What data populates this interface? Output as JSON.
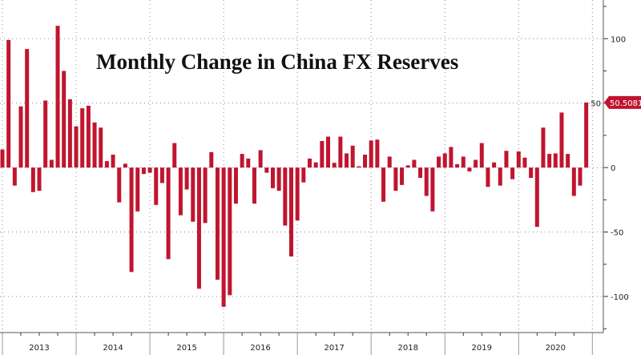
{
  "chart_data": {
    "type": "bar",
    "title": "Monthly Change in China FX Reserves",
    "xlabel": "",
    "ylabel": "",
    "x_start": "2013-01",
    "x_end": "2020-12",
    "frequency": "monthly",
    "year_labels": [
      "2013",
      "2014",
      "2015",
      "2016",
      "2017",
      "2018",
      "2019",
      "2020"
    ],
    "y_ticks": [
      100,
      50,
      0,
      -50,
      -100
    ],
    "ylim": [
      -128,
      130
    ],
    "grid": true,
    "axis_side": "right",
    "last_value_label": "50.5081",
    "bar_color": "#c0152f",
    "values": [
      14,
      99,
      -14,
      47.5,
      92,
      -19,
      -18,
      52,
      6,
      110,
      75,
      53,
      32,
      46,
      48,
      35,
      31,
      5,
      10,
      -27,
      3,
      -81,
      -34,
      -5,
      -4,
      -29,
      -12,
      -71,
      19,
      -37,
      -17,
      -42,
      -94,
      -43,
      12,
      -87,
      -108,
      -99,
      -28,
      10.6,
      7,
      -28,
      13.5,
      -4,
      -16,
      -18,
      -45,
      -69,
      -41,
      -11.5,
      7,
      4,
      20.6,
      24,
      3.7,
      24,
      11,
      17,
      1,
      10,
      21,
      21.7,
      -26.5,
      8.5,
      -18,
      -13.5,
      1.7,
      6,
      -8,
      -22,
      -34,
      8.5,
      11,
      16,
      2.7,
      8.5,
      -3,
      6,
      19,
      -15,
      4,
      -14,
      13,
      -9,
      12.5,
      7.7,
      -8,
      -46,
      31,
      10.6,
      11,
      42.7,
      10.6,
      -22,
      -14,
      50.5081
    ]
  }
}
